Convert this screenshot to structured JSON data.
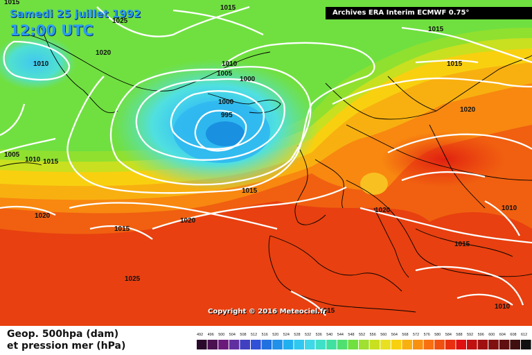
{
  "header": {
    "date": "Samedi 25 juillet 1992",
    "time": "12:00 UTC",
    "archive": "Archives ERA Interim ECMWF 0.75°"
  },
  "copyright": "Copyright © 2016 Meteociel.fr",
  "legend": {
    "line1": "Geop. 500hpa (dam)",
    "line2": "et pression mer (hPa)",
    "scale_values": [
      "492",
      "496",
      "500",
      "504",
      "508",
      "512",
      "516",
      "520",
      "524",
      "528",
      "532",
      "536",
      "540",
      "544",
      "548",
      "552",
      "556",
      "560",
      "564",
      "568",
      "572",
      "576",
      "580",
      "584",
      "588",
      "592",
      "596",
      "600",
      "604",
      "608",
      "612"
    ],
    "scale_colors": [
      "#2a0a2a",
      "#4a1050",
      "#6a1a7a",
      "#6030a0",
      "#4040c0",
      "#3050d8",
      "#2070e0",
      "#2090e8",
      "#20b0f0",
      "#30c8f0",
      "#40d8e8",
      "#40e0c8",
      "#40e0a0",
      "#50e070",
      "#70e040",
      "#a0e030",
      "#c8e020",
      "#e8e020",
      "#f8d010",
      "#f8b010",
      "#f89010",
      "#f87010",
      "#f05010",
      "#e83010",
      "#e01010",
      "#c01010",
      "#a01010",
      "#801010",
      "#601010",
      "#401010",
      "#101010"
    ]
  },
  "isobar_labels": [
    {
      "text": "1015"
    },
    {
      "text": "1015"
    },
    {
      "text": "1025"
    },
    {
      "text": "1015"
    },
    {
      "text": "1010"
    },
    {
      "text": "1020"
    },
    {
      "text": "1010"
    },
    {
      "text": "1005"
    },
    {
      "text": "1000"
    },
    {
      "text": "1015"
    },
    {
      "text": "1000"
    },
    {
      "text": "995"
    },
    {
      "text": "1020"
    },
    {
      "text": "1005"
    },
    {
      "text": "1010"
    },
    {
      "text": "1015"
    },
    {
      "text": "1015"
    },
    {
      "text": "1020"
    },
    {
      "text": "1020"
    },
    {
      "text": "1010"
    },
    {
      "text": "1015"
    },
    {
      "text": "1020"
    },
    {
      "text": "1015"
    },
    {
      "text": "1025"
    },
    {
      "text": "1015"
    },
    {
      "text": "1010"
    }
  ]
}
